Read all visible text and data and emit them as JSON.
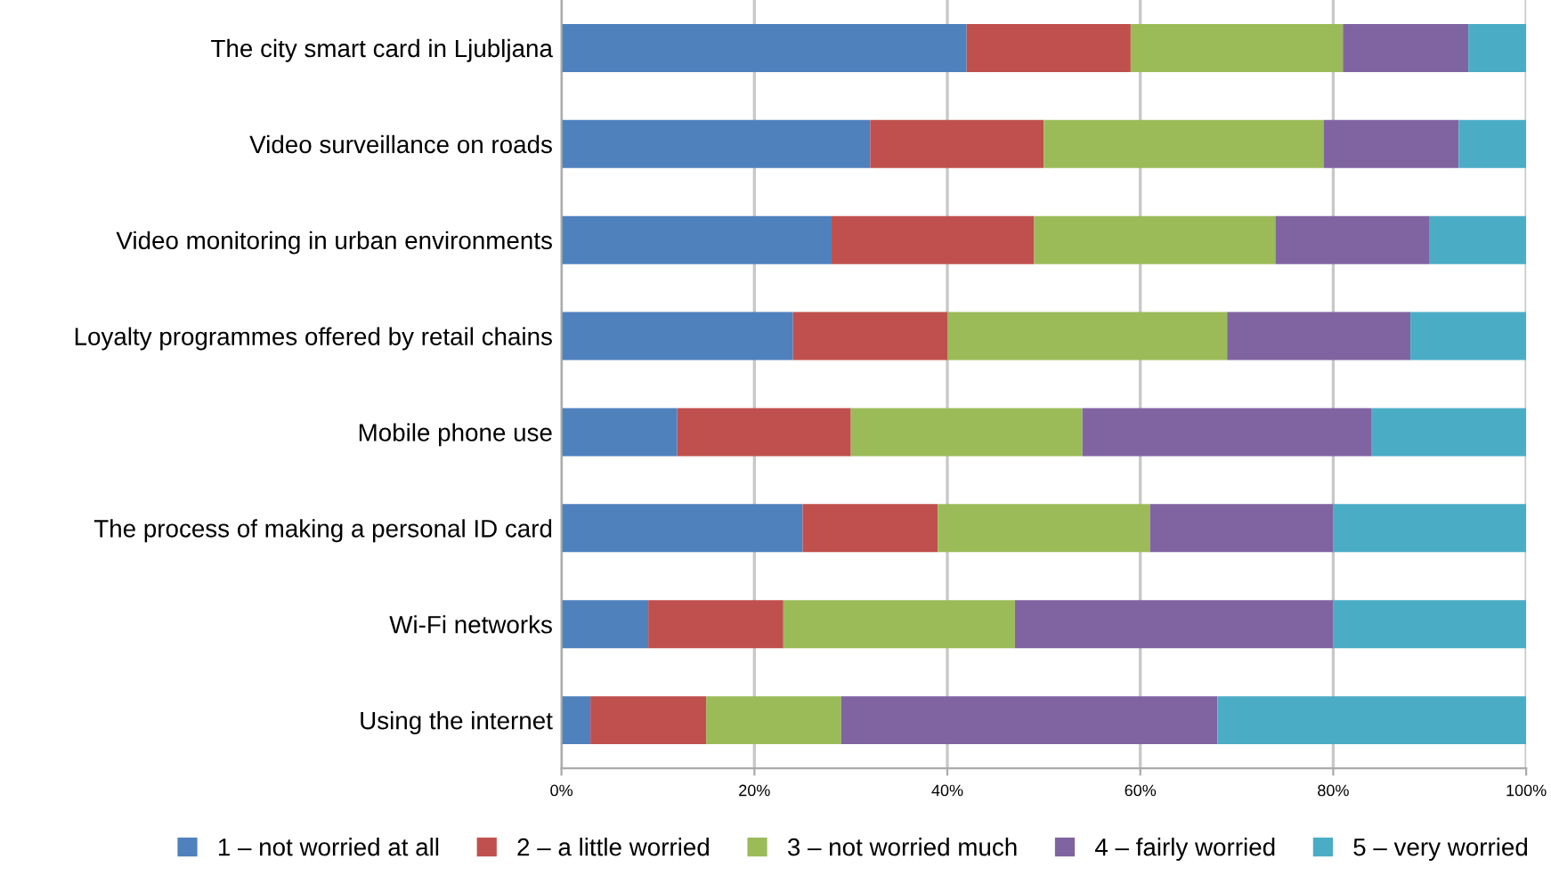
{
  "chart_data": {
    "type": "bar",
    "orientation": "horizontal",
    "stacked": true,
    "categories": [
      "The city smart card in Ljubljana",
      "Video surveillance on roads",
      "Video monitoring in urban environments",
      "Loyalty programmes offered by retail chains",
      "Mobile phone use",
      "The process of making a personal ID card",
      "Wi-Fi networks",
      "Using the internet"
    ],
    "series": [
      {
        "name": "1 – not worried at all",
        "color": "#4f81bd",
        "values": [
          42,
          32,
          28,
          24,
          12,
          25,
          9,
          3
        ]
      },
      {
        "name": "2 – a little worried",
        "color": "#c0504d",
        "values": [
          17,
          18,
          21,
          16,
          18,
          14,
          14,
          12
        ]
      },
      {
        "name": "3 – not worried much",
        "color": "#9bbb59",
        "values": [
          22,
          29,
          25,
          29,
          24,
          22,
          24,
          14
        ]
      },
      {
        "name": "4 – fairly worried",
        "color": "#8064a2",
        "values": [
          13,
          14,
          16,
          19,
          30,
          19,
          33,
          39
        ]
      },
      {
        "name": "5 – very worried",
        "color": "#4bacc6",
        "values": [
          6,
          7,
          10,
          12,
          16,
          20,
          20,
          32
        ]
      }
    ],
    "xlim": [
      0,
      100
    ],
    "xticks": [
      {
        "value": 0,
        "label": "0%"
      },
      {
        "value": 20,
        "label": "20%"
      },
      {
        "value": 40,
        "label": "40%"
      },
      {
        "value": 60,
        "label": "60%"
      },
      {
        "value": 80,
        "label": "80%"
      },
      {
        "value": 100,
        "label": "100%"
      }
    ],
    "grid": "x",
    "legend": "bottom"
  }
}
